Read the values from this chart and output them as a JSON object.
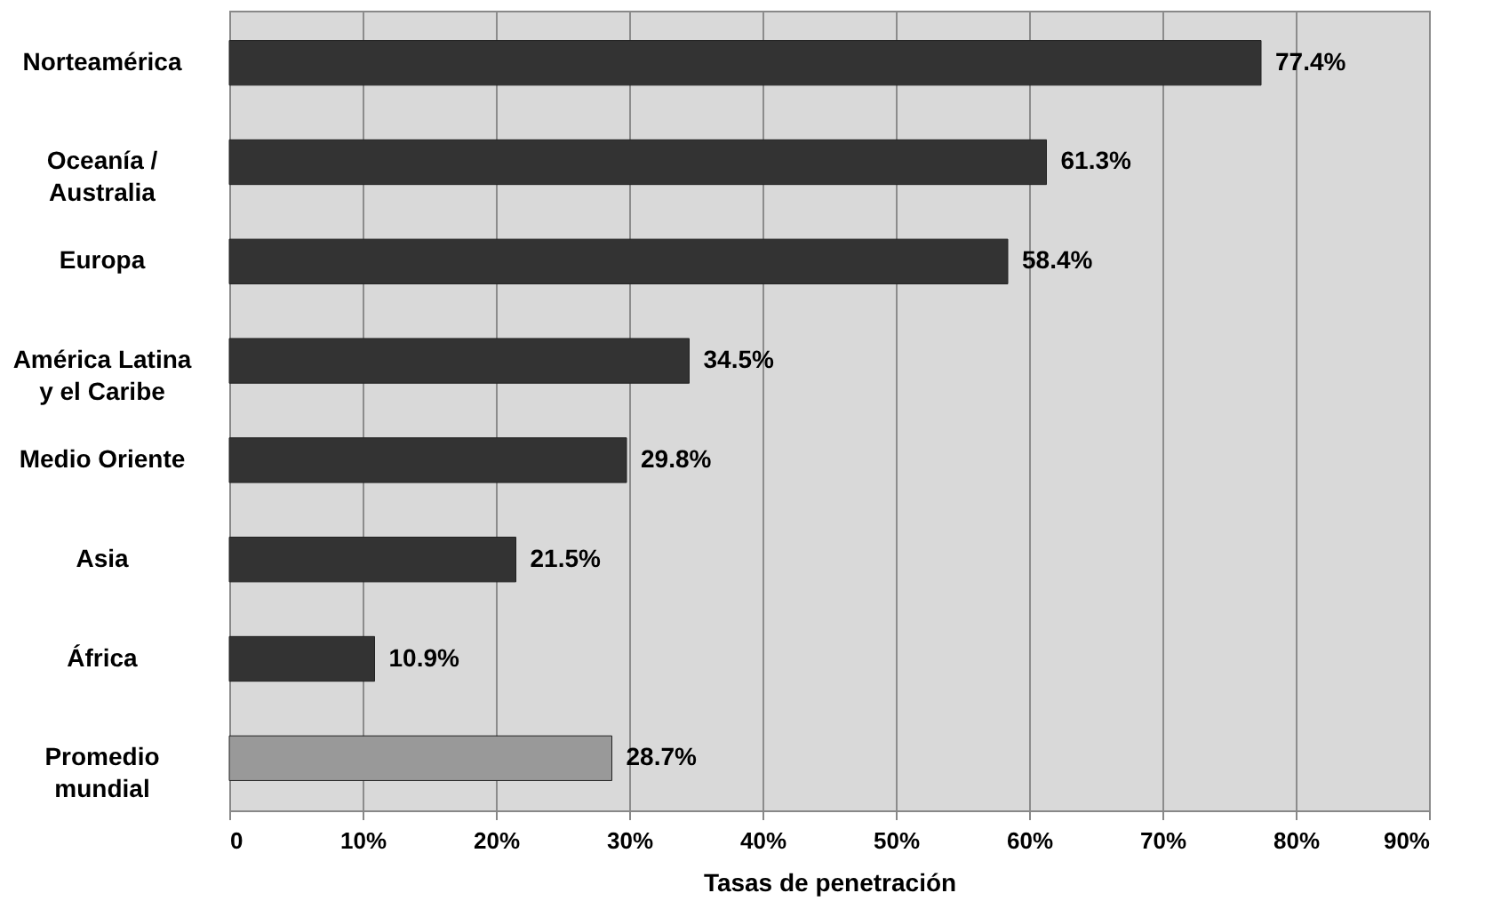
{
  "chart_data": {
    "type": "bar",
    "orientation": "horizontal",
    "xlabel": "Tasas de penetración",
    "categories": [
      "Norteamérica",
      "Oceanía / Australia",
      "Europa",
      "América Latina y el Caribe",
      "Medio Oriente",
      "Asia",
      "África",
      "Promedio mundial"
    ],
    "values": [
      77.4,
      61.3,
      58.4,
      34.5,
      29.8,
      21.5,
      10.9,
      28.7
    ],
    "colors": [
      "#333333",
      "#333333",
      "#333333",
      "#333333",
      "#333333",
      "#333333",
      "#333333",
      "#999999"
    ],
    "value_labels": [
      "77.4%",
      "61.3%",
      "58.4%",
      "34.5%",
      "29.8%",
      "21.5%",
      "10.9%",
      "28.7%"
    ],
    "xlim": [
      0,
      90
    ],
    "xticks": [
      {
        "value": 0,
        "label": "0"
      },
      {
        "value": 10,
        "label": "10%"
      },
      {
        "value": 20,
        "label": "20%"
      },
      {
        "value": 30,
        "label": "30%"
      },
      {
        "value": 40,
        "label": "40%"
      },
      {
        "value": 50,
        "label": "50%"
      },
      {
        "value": 60,
        "label": "60%"
      },
      {
        "value": 70,
        "label": "70%"
      },
      {
        "value": 80,
        "label": "80%"
      },
      {
        "value": 90,
        "label": "90%"
      }
    ],
    "grid": "x"
  }
}
